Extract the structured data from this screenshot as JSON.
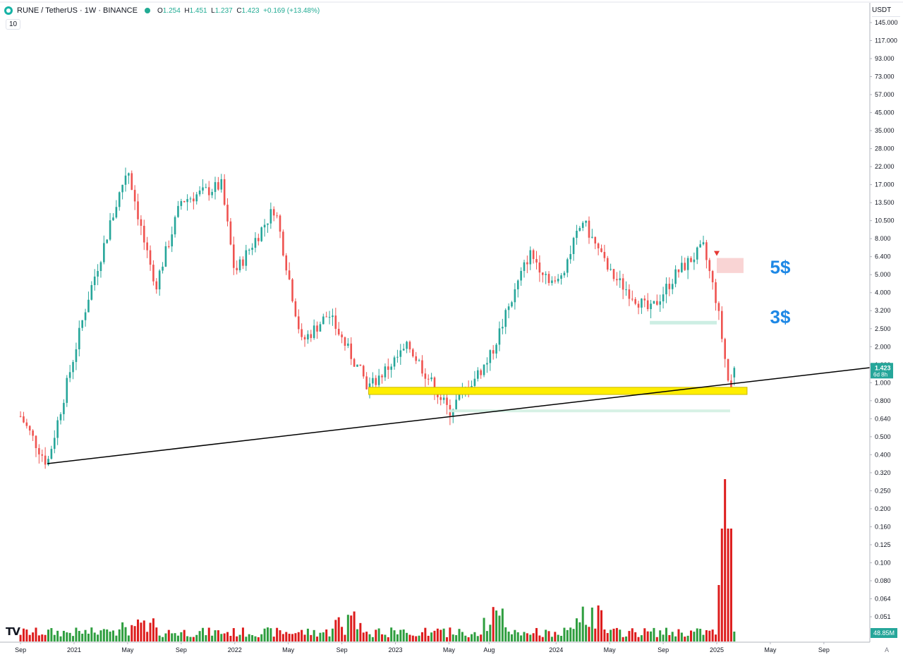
{
  "header": {
    "symbol": "RUNE / TetherUS · 1W · BINANCE",
    "open_label": "O",
    "open": "1.254",
    "high_label": "H",
    "high": "1.451",
    "low_label": "L",
    "low": "1.237",
    "close_label": "C",
    "close": "1.423",
    "change": "+0.169 (+13.48%)"
  },
  "volume_badge": "10",
  "currency": "USDT",
  "auto_label": "A",
  "logo_text": "TV",
  "colors": {
    "up": "#26a69a",
    "down": "#ef5350",
    "vol_up": "#2e9e3f",
    "vol_down": "#dd1c1c",
    "support_zone": "#ffee00",
    "resistance_zone": "#f8c9c9",
    "annotation": "#1e88e5",
    "trendline": "#000000"
  },
  "chart_data": {
    "type": "candlestick",
    "scale": "log",
    "x_labels": [
      "Sep",
      "2021",
      "May",
      "Sep",
      "2022",
      "May",
      "Sep",
      "2023",
      "May",
      "Aug",
      "2024",
      "May",
      "Sep",
      "2025",
      "May",
      "Sep"
    ],
    "y_ticks": [
      "145.000",
      "117.000",
      "93.000",
      "73.000",
      "57.000",
      "45.000",
      "35.000",
      "28.000",
      "22.000",
      "17.000",
      "13.500",
      "10.500",
      "8.000",
      "6.400",
      "5.000",
      "4.000",
      "3.200",
      "2.500",
      "2.000",
      "1.600",
      "1.000",
      "0.800",
      "0.640",
      "0.500",
      "0.400",
      "0.320",
      "0.250",
      "0.200",
      "0.160",
      "0.125",
      "0.100",
      "0.080",
      "0.064",
      "0.051"
    ],
    "last_price": "1.423",
    "countdown": "6d 8h",
    "volume_last": "48.85M",
    "annotations": [
      "5$",
      "3$"
    ],
    "key_prices": [
      {
        "date": "2020-09",
        "price": 0.75
      },
      {
        "date": "2020-11",
        "price": 0.4
      },
      {
        "date": "2021-02",
        "price": 3.5
      },
      {
        "date": "2021-05",
        "price": 20.5
      },
      {
        "date": "2021-07",
        "price": 4.0
      },
      {
        "date": "2021-09",
        "price": 13.0
      },
      {
        "date": "2021-12",
        "price": 16.0
      },
      {
        "date": "2022-01",
        "price": 5.0
      },
      {
        "date": "2022-04",
        "price": 12.0
      },
      {
        "date": "2022-06",
        "price": 2.0
      },
      {
        "date": "2022-08",
        "price": 2.9
      },
      {
        "date": "2022-11",
        "price": 1.1
      },
      {
        "date": "2023-02",
        "price": 1.9
      },
      {
        "date": "2023-05",
        "price": 0.8
      },
      {
        "date": "2023-08",
        "price": 1.6
      },
      {
        "date": "2023-11",
        "price": 6.5
      },
      {
        "date": "2024-01",
        "price": 4.2
      },
      {
        "date": "2024-03",
        "price": 10.0
      },
      {
        "date": "2024-05",
        "price": 5.0
      },
      {
        "date": "2024-08",
        "price": 3.0
      },
      {
        "date": "2024-10",
        "price": 5.0
      },
      {
        "date": "2024-12",
        "price": 7.0
      },
      {
        "date": "2025-01",
        "price": 3.4
      },
      {
        "date": "2025-02",
        "price": 1.0
      },
      {
        "date": "2025-02",
        "price": 1.423
      }
    ],
    "trendline": {
      "from": {
        "date": "2020-11",
        "price": 0.4
      },
      "through": {
        "date": "2025-02",
        "price": 1.15
      }
    },
    "support_zone": {
      "from": "2022-11",
      "to": "2025-03",
      "low": 1.0,
      "high": 1.1
    },
    "resistance_zone": {
      "from": "2025-01",
      "to": "2025-03",
      "low": 5.0,
      "high": 6.1
    },
    "mid_zone": {
      "from": "2024-08",
      "to": "2025-01",
      "low": 2.55,
      "high": 2.65
    },
    "low_zone": {
      "from": "2023-05",
      "to": "2025-02",
      "low": 0.79,
      "high": 0.82
    }
  }
}
